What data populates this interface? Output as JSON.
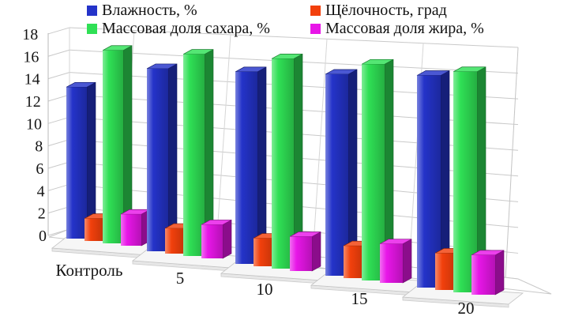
{
  "chart_data": {
    "type": "bar",
    "projection": "3d-clustered-column",
    "title": "",
    "xlabel": "",
    "ylabel": "",
    "categories": [
      "Контроль",
      "5",
      "10",
      "15",
      "20"
    ],
    "series": [
      {
        "name": "Влажность, %",
        "color": "#2433C9",
        "values": [
          13.5,
          15.2,
          15.1,
          15.0,
          15.0
        ]
      },
      {
        "name": "Щёлочность, град",
        "color": "#F2400C",
        "values": [
          2.0,
          2.1,
          2.2,
          2.4,
          2.6
        ]
      },
      {
        "name": "Массовая доля сахара, %",
        "color": "#2FE055",
        "values": [
          17.2,
          16.8,
          16.5,
          16.1,
          15.6
        ]
      },
      {
        "name": "Массовая доля жира, %",
        "color": "#E816E8",
        "values": [
          2.8,
          2.8,
          2.7,
          2.9,
          2.8
        ]
      }
    ],
    "ylim": [
      0,
      18
    ],
    "yticks": [
      0,
      2,
      4,
      6,
      8,
      10,
      12,
      14,
      16,
      18
    ],
    "grid": true,
    "gridline_color": "#c9c9c9",
    "wall_color": "#ffffff",
    "legend_position": "top-two-columns"
  }
}
